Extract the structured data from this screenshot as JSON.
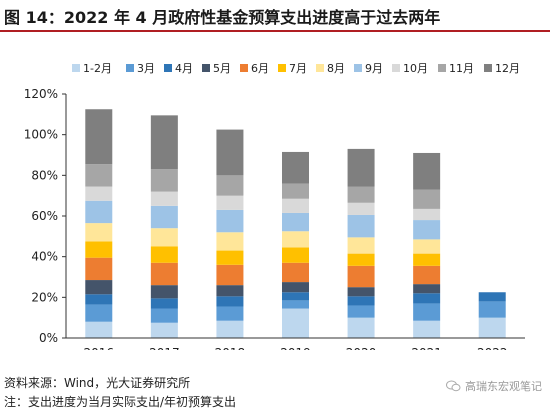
{
  "title": "图 14：2022 年 4 月政府性基金预算支出进度高于过去两年",
  "source": "资料来源：Wind，光大证券研究所",
  "note": "注：支出进度为当月实际支出/年初预算支出",
  "watermark": "高瑞东宏观笔记",
  "chart_data": {
    "type": "bar",
    "stacked": true,
    "categories": [
      "2016",
      "2017",
      "2018",
      "2019",
      "2020",
      "2021",
      "2022"
    ],
    "y_ticks": [
      "0%",
      "20%",
      "40%",
      "60%",
      "80%",
      "100%",
      "120%"
    ],
    "ylim": [
      0,
      120
    ],
    "legend_position": "top",
    "series": [
      {
        "name": "1-2月",
        "color": "#bdd7ee",
        "values": [
          8,
          7.5,
          8.5,
          14.5,
          10,
          8.5,
          10
        ]
      },
      {
        "name": "3月",
        "color": "#5b9bd5",
        "values": [
          8.5,
          7,
          7,
          4,
          6,
          8.5,
          8
        ]
      },
      {
        "name": "4月",
        "color": "#2e75b6",
        "values": [
          5,
          5,
          5,
          4,
          4.5,
          5,
          4.5
        ]
      },
      {
        "name": "5月",
        "color": "#44546a",
        "values": [
          7,
          6.5,
          5.5,
          5,
          4.5,
          4.5,
          null
        ]
      },
      {
        "name": "6月",
        "color": "#ed7d31",
        "values": [
          11,
          11,
          10,
          9.5,
          10.5,
          9,
          null
        ]
      },
      {
        "name": "7月",
        "color": "#ffc000",
        "values": [
          8,
          8,
          7,
          7.5,
          6,
          6,
          null
        ]
      },
      {
        "name": "8月",
        "color": "#ffe699",
        "values": [
          9,
          9,
          9,
          8,
          8,
          7,
          null
        ]
      },
      {
        "name": "9月",
        "color": "#9dc3e6",
        "values": [
          11,
          11,
          11,
          9,
          11,
          9.5,
          null
        ]
      },
      {
        "name": "10月",
        "color": "#d9d9d9",
        "values": [
          7,
          7,
          7,
          7,
          6,
          5.5,
          null
        ]
      },
      {
        "name": "11月",
        "color": "#a6a6a6",
        "values": [
          11,
          11,
          10,
          7.5,
          8,
          9.5,
          null
        ]
      },
      {
        "name": "12月",
        "color": "#7f7f7f",
        "values": [
          27,
          26.5,
          22.5,
          15.5,
          18.5,
          18,
          null
        ]
      }
    ]
  }
}
